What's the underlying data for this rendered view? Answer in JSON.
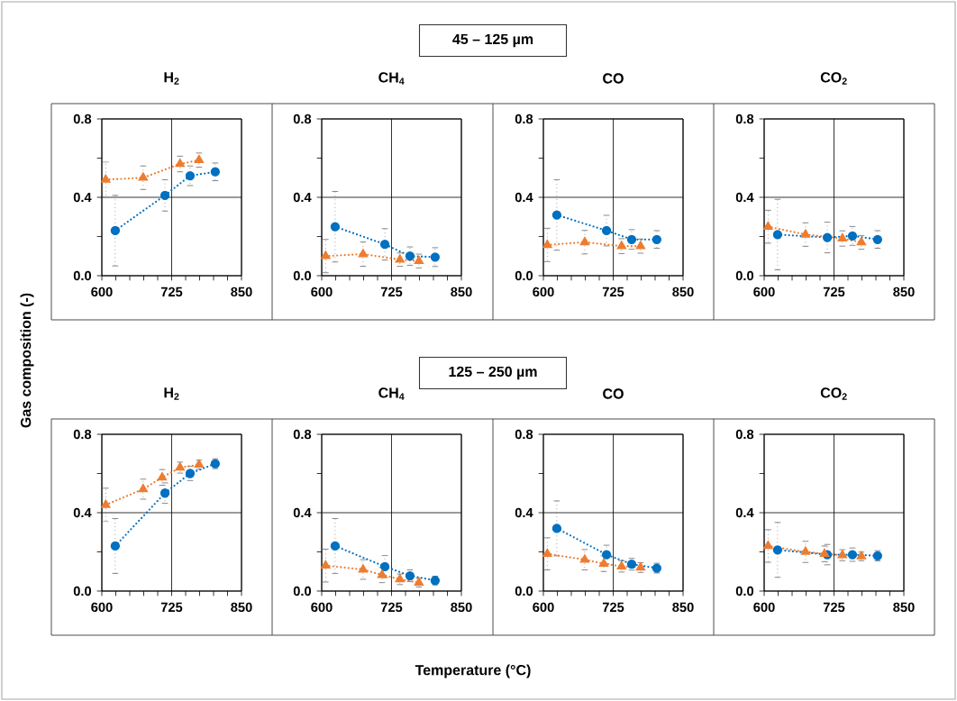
{
  "chart_data": [
    {
      "type": "other",
      "title": "45 – 125 µm"
    },
    {
      "type": "line",
      "title": "H$_{2}$",
      "xlim": [
        600,
        850
      ],
      "ylim": [
        0,
        0.8
      ],
      "xticks": [
        600,
        {
          "value": 625,
          "label": null
        },
        {
          "value": 650,
          "label": null
        },
        {
          "value": 675,
          "label": null
        },
        {
          "value": 700,
          "label": null
        },
        725,
        {
          "value": 750,
          "label": null
        },
        {
          "value": 775,
          "label": null
        },
        {
          "value": 800,
          "label": null
        },
        {
          "value": 825,
          "label": null
        },
        850
      ],
      "yticks": [
        {
          "value": 0,
          "label": "0.0"
        },
        {
          "value": 0.2,
          "label": null
        },
        {
          "value": 0.4,
          "label": "0.4"
        },
        {
          "value": 0.6,
          "label": null
        },
        {
          "value": 0.8,
          "label": "0.8"
        }
      ],
      "grid": true,
      "line_style": "dotted",
      "series": [
        {
          "color": "#0070c0",
          "marker": "circle",
          "x": [
            624,
            713,
            758,
            803
          ],
          "values": [
            0.23,
            0.41,
            0.51,
            0.53
          ],
          "errors": [
            0.18,
            0.08,
            0.05,
            0.045
          ]
        },
        {
          "color": "#ed7d31",
          "marker": "triangle",
          "x": [
            607,
            674,
            740,
            774
          ],
          "values": [
            0.49,
            0.5,
            0.57,
            0.59
          ],
          "errors": [
            0.09,
            0.06,
            0.04,
            0.036
          ]
        }
      ]
    },
    {
      "type": "line",
      "title": "CH$_{4}$",
      "xlim": [
        600,
        850
      ],
      "ylim": [
        0,
        0.8
      ],
      "xticks": [
        600,
        {
          "value": 625,
          "label": null
        },
        {
          "value": 650,
          "label": null
        },
        {
          "value": 675,
          "label": null
        },
        {
          "value": 700,
          "label": null
        },
        725,
        {
          "value": 750,
          "label": null
        },
        {
          "value": 775,
          "label": null
        },
        {
          "value": 800,
          "label": null
        },
        {
          "value": 825,
          "label": null
        },
        850
      ],
      "yticks": [
        {
          "value": 0,
          "label": "0.0"
        },
        {
          "value": 0.2,
          "label": null
        },
        {
          "value": 0.4,
          "label": "0.4"
        },
        {
          "value": 0.6,
          "label": null
        },
        {
          "value": 0.8,
          "label": "0.8"
        }
      ],
      "grid": true,
      "line_style": "dotted",
      "series": [
        {
          "color": "#0070c0",
          "marker": "circle",
          "x": [
            624,
            713,
            758,
            803
          ],
          "values": [
            0.25,
            0.16,
            0.1,
            0.095
          ],
          "errors": [
            0.18,
            0.08,
            0.047,
            0.048
          ]
        },
        {
          "color": "#ed7d31",
          "marker": "triangle",
          "x": [
            607,
            674,
            740,
            774
          ],
          "values": [
            0.1,
            0.11,
            0.082,
            0.075
          ],
          "errors": [
            0.085,
            0.062,
            0.034,
            0.035
          ]
        }
      ]
    },
    {
      "type": "line",
      "title": "CO",
      "xlim": [
        600,
        850
      ],
      "ylim": [
        0,
        0.8
      ],
      "xticks": [
        600,
        {
          "value": 625,
          "label": null
        },
        {
          "value": 650,
          "label": null
        },
        {
          "value": 675,
          "label": null
        },
        {
          "value": 700,
          "label": null
        },
        725,
        {
          "value": 750,
          "label": null
        },
        {
          "value": 775,
          "label": null
        },
        {
          "value": 800,
          "label": null
        },
        {
          "value": 825,
          "label": null
        },
        850
      ],
      "yticks": [
        {
          "value": 0,
          "label": "0.0"
        },
        {
          "value": 0.2,
          "label": null
        },
        {
          "value": 0.4,
          "label": "0.4"
        },
        {
          "value": 0.6,
          "label": null
        },
        {
          "value": 0.8,
          "label": "0.8"
        }
      ],
      "grid": true,
      "line_style": "dotted",
      "series": [
        {
          "color": "#0070c0",
          "marker": "circle",
          "x": [
            624,
            713,
            758,
            803
          ],
          "values": [
            0.31,
            0.23,
            0.185,
            0.185
          ],
          "errors": [
            0.18,
            0.078,
            0.05,
            0.045
          ]
        },
        {
          "color": "#ed7d31",
          "marker": "triangle",
          "x": [
            607,
            674,
            740,
            774
          ],
          "values": [
            0.157,
            0.171,
            0.151,
            0.151
          ],
          "errors": [
            0.085,
            0.06,
            0.038,
            0.036
          ]
        }
      ]
    },
    {
      "type": "line",
      "title": "CO$_{2}$",
      "xlim": [
        600,
        850
      ],
      "ylim": [
        0,
        0.8
      ],
      "xticks": [
        600,
        {
          "value": 625,
          "label": null
        },
        {
          "value": 650,
          "label": null
        },
        {
          "value": 675,
          "label": null
        },
        {
          "value": 700,
          "label": null
        },
        725,
        {
          "value": 750,
          "label": null
        },
        {
          "value": 775,
          "label": null
        },
        {
          "value": 800,
          "label": null
        },
        {
          "value": 825,
          "label": null
        },
        850
      ],
      "yticks": [
        {
          "value": 0,
          "label": "0.0"
        },
        {
          "value": 0.2,
          "label": null
        },
        {
          "value": 0.4,
          "label": "0.4"
        },
        {
          "value": 0.6,
          "label": null
        },
        {
          "value": 0.8,
          "label": "0.8"
        }
      ],
      "grid": true,
      "line_style": "dotted",
      "series": [
        {
          "color": "#0070c0",
          "marker": "circle",
          "x": [
            624,
            713,
            758,
            803
          ],
          "values": [
            0.21,
            0.195,
            0.203,
            0.185
          ],
          "errors": [
            0.18,
            0.078,
            0.048,
            0.045
          ]
        },
        {
          "color": "#ed7d31",
          "marker": "triangle",
          "x": [
            607,
            674,
            740,
            774
          ],
          "values": [
            0.25,
            0.21,
            0.19,
            0.17
          ],
          "errors": [
            0.084,
            0.06,
            0.039,
            0.035
          ]
        }
      ]
    },
    {
      "type": "other",
      "title": "125 – 250 µm"
    },
    {
      "type": "line",
      "title": "H$_{2}$",
      "xlim": [
        600,
        850
      ],
      "ylim": [
        0,
        0.8
      ],
      "xticks": [
        600,
        {
          "value": 625,
          "label": null
        },
        {
          "value": 650,
          "label": null
        },
        {
          "value": 675,
          "label": null
        },
        {
          "value": 700,
          "label": null
        },
        725,
        {
          "value": 750,
          "label": null
        },
        {
          "value": 775,
          "label": null
        },
        {
          "value": 800,
          "label": null
        },
        {
          "value": 825,
          "label": null
        },
        850
      ],
      "yticks": [
        {
          "value": 0,
          "label": "0.0"
        },
        {
          "value": 0.2,
          "label": null
        },
        {
          "value": 0.4,
          "label": "0.4"
        },
        {
          "value": 0.6,
          "label": null
        },
        {
          "value": 0.8,
          "label": "0.8"
        }
      ],
      "grid": true,
      "line_style": "dotted",
      "series": [
        {
          "color": "#0070c0",
          "marker": "circle",
          "x": [
            624,
            713,
            758,
            803
          ],
          "values": [
            0.23,
            0.5,
            0.6,
            0.65
          ],
          "errors": [
            0.14,
            0.052,
            0.036,
            0.025
          ]
        },
        {
          "color": "#ed7d31",
          "marker": "triangle",
          "x": [
            607,
            674,
            708,
            740,
            774
          ],
          "values": [
            0.44,
            0.52,
            0.58,
            0.63,
            0.645
          ],
          "errors": [
            0.085,
            0.051,
            0.04,
            0.028,
            0.023
          ]
        }
      ]
    },
    {
      "type": "line",
      "title": "CH$_{4}$",
      "xlim": [
        600,
        850
      ],
      "ylim": [
        0,
        0.8
      ],
      "xticks": [
        600,
        {
          "value": 625,
          "label": null
        },
        {
          "value": 650,
          "label": null
        },
        {
          "value": 675,
          "label": null
        },
        {
          "value": 700,
          "label": null
        },
        725,
        {
          "value": 750,
          "label": null
        },
        {
          "value": 775,
          "label": null
        },
        {
          "value": 800,
          "label": null
        },
        {
          "value": 825,
          "label": null
        },
        850
      ],
      "yticks": [
        {
          "value": 0,
          "label": "0.0"
        },
        {
          "value": 0.2,
          "label": null
        },
        {
          "value": 0.4,
          "label": "0.4"
        },
        {
          "value": 0.6,
          "label": null
        },
        {
          "value": 0.8,
          "label": "0.8"
        }
      ],
      "grid": true,
      "line_style": "dotted",
      "series": [
        {
          "color": "#0070c0",
          "marker": "circle",
          "x": [
            624,
            713,
            758,
            803
          ],
          "values": [
            0.23,
            0.125,
            0.078,
            0.054
          ],
          "errors": [
            0.14,
            0.056,
            0.03,
            0.022
          ]
        },
        {
          "color": "#ed7d31",
          "marker": "triangle",
          "x": [
            607,
            674,
            708,
            740,
            774
          ],
          "values": [
            0.13,
            0.11,
            0.082,
            0.06,
            0.043
          ],
          "errors": [
            0.084,
            0.05,
            0.039,
            0.027,
            0.022
          ]
        }
      ]
    },
    {
      "type": "line",
      "title": "CO",
      "xlim": [
        600,
        850
      ],
      "ylim": [
        0,
        0.8
      ],
      "xticks": [
        600,
        {
          "value": 625,
          "label": null
        },
        {
          "value": 650,
          "label": null
        },
        {
          "value": 675,
          "label": null
        },
        {
          "value": 700,
          "label": null
        },
        725,
        {
          "value": 750,
          "label": null
        },
        {
          "value": 775,
          "label": null
        },
        {
          "value": 800,
          "label": null
        },
        {
          "value": 825,
          "label": null
        },
        850
      ],
      "yticks": [
        {
          "value": 0,
          "label": "0.0"
        },
        {
          "value": 0.2,
          "label": null
        },
        {
          "value": 0.4,
          "label": "0.4"
        },
        {
          "value": 0.6,
          "label": null
        },
        {
          "value": 0.8,
          "label": "0.8"
        }
      ],
      "grid": true,
      "line_style": "dotted",
      "series": [
        {
          "color": "#0070c0",
          "marker": "circle",
          "x": [
            624,
            713,
            758,
            803
          ],
          "values": [
            0.32,
            0.186,
            0.137,
            0.117
          ],
          "errors": [
            0.14,
            0.048,
            0.03,
            0.025
          ]
        },
        {
          "color": "#ed7d31",
          "marker": "triangle",
          "x": [
            607,
            674,
            708,
            740,
            774
          ],
          "values": [
            0.19,
            0.16,
            0.14,
            0.126,
            0.12
          ],
          "errors": [
            0.082,
            0.052,
            0.04,
            0.029,
            0.025
          ]
        }
      ]
    },
    {
      "type": "line",
      "title": "CO$_{2}$",
      "xlim": [
        600,
        850
      ],
      "ylim": [
        0,
        0.8
      ],
      "xticks": [
        600,
        {
          "value": 625,
          "label": null
        },
        {
          "value": 650,
          "label": null
        },
        {
          "value": 675,
          "label": null
        },
        {
          "value": 700,
          "label": null
        },
        725,
        {
          "value": 750,
          "label": null
        },
        {
          "value": 775,
          "label": null
        },
        {
          "value": 800,
          "label": null
        },
        {
          "value": 825,
          "label": null
        },
        850
      ],
      "yticks": [
        {
          "value": 0,
          "label": "0.0"
        },
        {
          "value": 0.2,
          "label": null
        },
        {
          "value": 0.4,
          "label": "0.4"
        },
        {
          "value": 0.6,
          "label": null
        },
        {
          "value": 0.8,
          "label": "0.8"
        }
      ],
      "grid": true,
      "line_style": "dotted",
      "series": [
        {
          "color": "#0070c0",
          "marker": "circle",
          "x": [
            624,
            713,
            758,
            803
          ],
          "values": [
            0.21,
            0.186,
            0.186,
            0.18
          ],
          "errors": [
            0.14,
            0.052,
            0.034,
            0.026
          ]
        },
        {
          "color": "#ed7d31",
          "marker": "triangle",
          "x": [
            607,
            674,
            708,
            740,
            774
          ],
          "values": [
            0.23,
            0.2,
            0.19,
            0.183,
            0.177
          ],
          "errors": [
            0.083,
            0.054,
            0.04,
            0.028,
            0.022
          ]
        }
      ]
    },
    {
      "type": "other",
      "xlabel": "Temperature (°C)",
      "ylabel": "Gas composition (-)"
    }
  ]
}
